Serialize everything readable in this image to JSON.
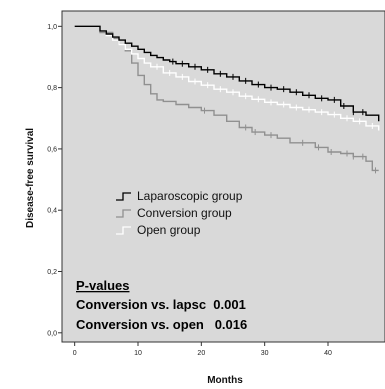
{
  "chart_data": {
    "type": "line",
    "subtype": "kaplan-meier",
    "title": "",
    "xlabel": "Months",
    "ylabel": "Disease-free survival",
    "xlim": [
      -2,
      49
    ],
    "ylim": [
      -0.03,
      1.05
    ],
    "x_ticks": [
      {
        "value": 0,
        "label": "0"
      },
      {
        "value": 10,
        "label": "10"
      },
      {
        "value": 20,
        "label": "20"
      },
      {
        "value": 30,
        "label": "30"
      },
      {
        "value": 40,
        "label": "40"
      }
    ],
    "y_ticks": [
      {
        "value": 0.0,
        "label": "0,0"
      },
      {
        "value": 0.2,
        "label": "0,2"
      },
      {
        "value": 0.4,
        "label": "0,4"
      },
      {
        "value": 0.6,
        "label": "0,6"
      },
      {
        "value": 0.8,
        "label": "0,8"
      },
      {
        "value": 1.0,
        "label": "1,0"
      }
    ],
    "grid": false,
    "legend_position": "middle-left",
    "series": [
      {
        "name": "Laparoscopic group",
        "color": "#000000",
        "x": [
          0,
          3,
          4,
          5,
          6,
          7,
          8,
          9,
          10,
          11,
          12,
          13,
          14,
          15,
          16,
          18,
          20,
          22,
          24,
          26,
          28,
          30,
          32,
          34,
          36,
          38,
          40,
          42,
          44,
          46,
          48
        ],
        "y": [
          1.0,
          1.0,
          0.985,
          0.975,
          0.965,
          0.955,
          0.945,
          0.935,
          0.925,
          0.915,
          0.905,
          0.898,
          0.89,
          0.885,
          0.878,
          0.868,
          0.858,
          0.845,
          0.835,
          0.822,
          0.81,
          0.8,
          0.795,
          0.785,
          0.775,
          0.765,
          0.76,
          0.74,
          0.72,
          0.71,
          0.69
        ],
        "censor_x": [
          15.5,
          17,
          19,
          21,
          23,
          25,
          27,
          29,
          31,
          33,
          35,
          37,
          39,
          41,
          42.5,
          44,
          45.5
        ]
      },
      {
        "name": "Conversion group",
        "color": "#909090",
        "x": [
          0,
          3,
          4,
          6,
          7,
          8,
          9,
          10,
          11,
          12,
          13,
          14,
          16,
          18,
          20,
          22,
          24,
          26,
          28,
          30,
          32,
          34,
          38,
          40,
          42,
          44,
          46,
          47,
          48
        ],
        "y": [
          1.0,
          1.0,
          0.98,
          0.96,
          0.94,
          0.92,
          0.88,
          0.84,
          0.81,
          0.78,
          0.76,
          0.755,
          0.745,
          0.735,
          0.725,
          0.71,
          0.69,
          0.67,
          0.655,
          0.645,
          0.635,
          0.62,
          0.605,
          0.59,
          0.585,
          0.575,
          0.56,
          0.53,
          0.53
        ],
        "censor_x": [
          20.5,
          27,
          28.5,
          31,
          36,
          38.5,
          40.5,
          43,
          44,
          45.5,
          47.5
        ]
      },
      {
        "name": "Open group",
        "color": "#ffffff",
        "x": [
          0,
          3,
          4,
          5,
          6,
          7,
          8,
          9,
          10,
          11,
          12,
          14,
          16,
          18,
          20,
          22,
          24,
          26,
          28,
          30,
          32,
          34,
          36,
          38,
          40,
          42,
          44,
          46,
          48
        ],
        "y": [
          1.0,
          1.0,
          0.985,
          0.97,
          0.955,
          0.94,
          0.925,
          0.91,
          0.895,
          0.88,
          0.868,
          0.848,
          0.835,
          0.82,
          0.808,
          0.795,
          0.785,
          0.772,
          0.762,
          0.752,
          0.745,
          0.735,
          0.728,
          0.72,
          0.712,
          0.7,
          0.69,
          0.675,
          0.66
        ],
        "censor_x": [
          13,
          15,
          17,
          19,
          21,
          23,
          25,
          27,
          29,
          31,
          33,
          35,
          37,
          39,
          41,
          43,
          45,
          47
        ]
      }
    ],
    "annotations": {
      "p_values_heading": "P-values",
      "p_value_1": "Conversion vs. lapsc  0.001",
      "p_value_2": "Conversion vs. open   0.016"
    },
    "colors": {
      "plot_background": "#d9d9d9",
      "page_background": "#ffffff"
    }
  }
}
